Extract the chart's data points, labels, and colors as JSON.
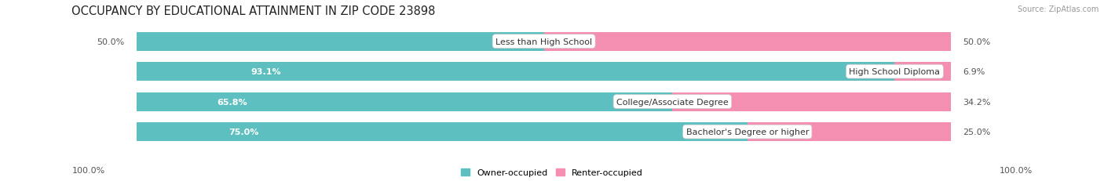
{
  "title": "OCCUPANCY BY EDUCATIONAL ATTAINMENT IN ZIP CODE 23898",
  "source": "Source: ZipAtlas.com",
  "categories": [
    "Less than High School",
    "High School Diploma",
    "College/Associate Degree",
    "Bachelor's Degree or higher"
  ],
  "owner_pct": [
    50.0,
    93.1,
    65.8,
    75.0
  ],
  "renter_pct": [
    50.0,
    6.9,
    34.2,
    25.0
  ],
  "owner_color": "#5DBFBF",
  "renter_color": "#F48FB1",
  "bar_bg_color": "#EBEBEB",
  "row_bg_color": "#F5F5F5",
  "background_color": "#FFFFFF",
  "title_fontsize": 10.5,
  "label_fontsize": 8,
  "value_fontsize": 8,
  "source_fontsize": 7,
  "axis_label_left": "100.0%",
  "axis_label_right": "100.0%",
  "legend_owner": "Owner-occupied",
  "legend_renter": "Renter-occupied"
}
